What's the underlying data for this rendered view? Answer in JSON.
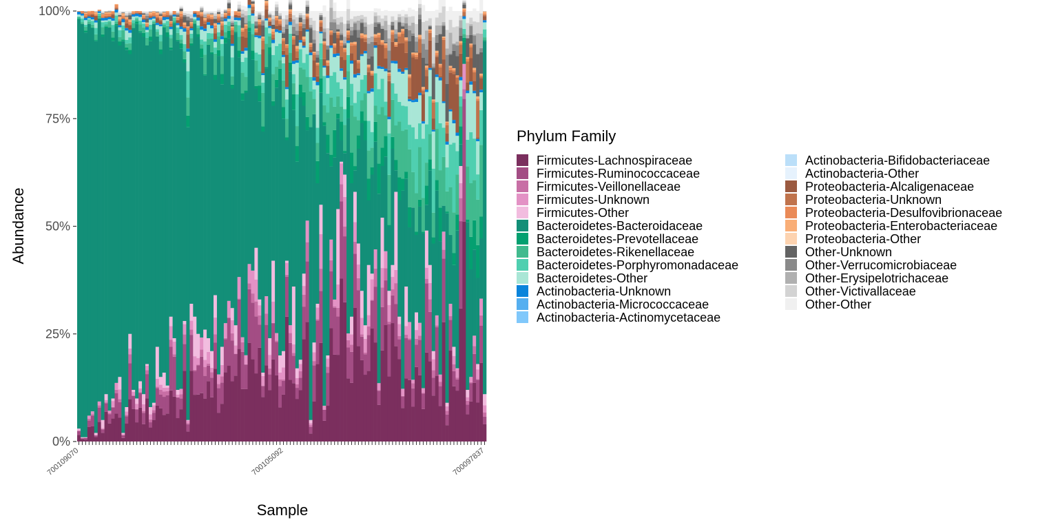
{
  "chart_data": {
    "type": "bar",
    "stacked": true,
    "normalized": true,
    "xlabel": "Sample",
    "ylabel": "Abundance",
    "ylim": [
      0,
      1
    ],
    "y_ticks": [
      {
        "value": 0,
        "label": "0%"
      },
      {
        "value": 0.25,
        "label": "25%"
      },
      {
        "value": 0.5,
        "label": "50%"
      },
      {
        "value": 0.75,
        "label": "75%"
      },
      {
        "value": 1,
        "label": "100%"
      }
    ],
    "sample_count": 120,
    "x_tick_labels_visible": [
      "700109070",
      "700105092",
      "700097837"
    ],
    "firmicutes_top_percent": [
      3,
      1,
      1,
      6,
      7,
      2,
      9,
      5,
      11,
      7,
      10,
      12,
      15,
      2,
      8,
      25,
      12,
      10,
      14,
      11,
      18,
      8,
      9,
      22,
      15,
      16,
      13,
      29,
      24,
      12,
      11,
      28,
      5,
      32,
      29,
      25,
      23,
      26,
      24,
      21,
      34,
      15,
      22,
      27,
      29,
      31,
      27,
      36,
      23,
      19,
      35,
      37,
      45,
      33,
      16,
      28,
      24,
      42,
      23,
      20,
      21,
      42,
      24,
      36,
      17,
      19,
      39,
      48,
      5,
      23,
      32,
      55,
      7,
      20,
      41,
      31,
      54,
      65,
      62,
      22,
      29,
      58,
      46,
      35,
      27,
      41,
      39,
      44,
      13,
      52,
      44,
      35,
      41,
      58,
      29,
      12,
      36,
      27,
      14,
      30,
      25,
      11,
      49,
      41,
      21,
      29,
      13,
      44,
      9,
      31,
      22,
      17,
      64,
      85,
      12,
      15,
      24,
      18,
      29,
      11
    ],
    "bacteroidaceae_top_percent": [
      98,
      97,
      95,
      97,
      96,
      93,
      98,
      94,
      96,
      96,
      93,
      95,
      92,
      93,
      91,
      90,
      96,
      97,
      95,
      94,
      92,
      93,
      97,
      94,
      90,
      96,
      94,
      91,
      97,
      93,
      90,
      88,
      73,
      92,
      97,
      94,
      88,
      85,
      92,
      90,
      84,
      89,
      83,
      92,
      90,
      82,
      95,
      87,
      78,
      80,
      89,
      86,
      82,
      79,
      72,
      81,
      90,
      78,
      80,
      84,
      75,
      70,
      83,
      77,
      65,
      80,
      78,
      69,
      73,
      76,
      60,
      81,
      72,
      67,
      58,
      64,
      75,
      70,
      66,
      72,
      60,
      59,
      68,
      74,
      70,
      56,
      62,
      69,
      57,
      64,
      66,
      50,
      68,
      52,
      56,
      58,
      61,
      49,
      54,
      48,
      52,
      47,
      55,
      63,
      46,
      58,
      44,
      50,
      53,
      47,
      41,
      49,
      42,
      45,
      51,
      40,
      44,
      38,
      43,
      93
    ],
    "series": [
      {
        "name": "Firmicutes-Lachnospiraceae",
        "color": "#7b2f5e"
      },
      {
        "name": "Firmicutes-Ruminococcaceae",
        "color": "#a34d84"
      },
      {
        "name": "Firmicutes-Veillonellaceae",
        "color": "#c86fa5"
      },
      {
        "name": "Firmicutes-Unknown",
        "color": "#e392c5"
      },
      {
        "name": "Firmicutes-Other",
        "color": "#f2bcdf"
      },
      {
        "name": "Bacteroidetes-Bacteroidaceae",
        "color": "#138f78"
      },
      {
        "name": "Bacteroidetes-Prevotellaceae",
        "color": "#04a070"
      },
      {
        "name": "Bacteroidetes-Rikenellaceae",
        "color": "#41ba8e"
      },
      {
        "name": "Bacteroidetes-Porphyromonadaceae",
        "color": "#4fcfb0"
      },
      {
        "name": "Bacteroidetes-Other",
        "color": "#a9e6d6"
      },
      {
        "name": "Actinobacteria-Unknown",
        "color": "#0a84db"
      },
      {
        "name": "Actinobacteria-Micrococcaceae",
        "color": "#55aff0"
      },
      {
        "name": "Actinobacteria-Actinomycetaceae",
        "color": "#80c8fb"
      },
      {
        "name": "Actinobacteria-Bifidobacteriaceae",
        "color": "#bbdff9"
      },
      {
        "name": "Actinobacteria-Other",
        "color": "#e6f2fd"
      },
      {
        "name": "Proteobacteria-Alcaligenaceae",
        "color": "#9b5a40"
      },
      {
        "name": "Proteobacteria-Unknown",
        "color": "#c0734c"
      },
      {
        "name": "Proteobacteria-Desulfovibrionaceae",
        "color": "#ea8a57"
      },
      {
        "name": "Proteobacteria-Enterobacteriaceae",
        "color": "#f9ae77"
      },
      {
        "name": "Proteobacteria-Other",
        "color": "#fdd3b0"
      },
      {
        "name": "Other-Unknown",
        "color": "#636363"
      },
      {
        "name": "Other-Verrucomicrobiaceae",
        "color": "#8a8a8a"
      },
      {
        "name": "Other-Erysipelotrichaceae",
        "color": "#b0b0b0"
      },
      {
        "name": "Other-Victivallaceae",
        "color": "#d3d3d3"
      },
      {
        "name": "Other-Other",
        "color": "#f0f0f0"
      }
    ],
    "legend": {
      "title": "Phylum Family",
      "position": "right",
      "columns": 2
    }
  }
}
